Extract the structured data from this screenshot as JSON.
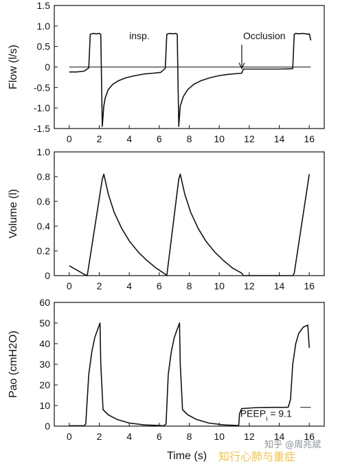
{
  "chart_data": [
    {
      "type": "line",
      "ylabel": "Flow (l/s)",
      "xlim": [
        -1,
        17
      ],
      "ylim": [
        -1.5,
        1.5
      ],
      "xticks": [
        "0",
        "2",
        "4",
        "6",
        "8",
        "10",
        "12",
        "14",
        "16"
      ],
      "yticks": [
        "1.5",
        "1.0",
        "0.5",
        "0",
        "-0.5",
        "-1.0",
        "-1.5"
      ],
      "grid": false,
      "zero_line": true,
      "annotations": [
        {
          "text": "insp.",
          "x": 4.0,
          "y": 0.68
        },
        {
          "text": "Occlusion",
          "x": 13.0,
          "y": 0.68,
          "arrow_to": [
            11.5,
            -0.05
          ]
        }
      ],
      "series": [
        {
          "x": [
            0.0,
            0.5,
            1.0,
            1.3,
            1.4,
            1.6,
            1.8,
            2.0,
            2.1,
            2.2,
            2.3,
            2.4,
            2.6,
            2.9,
            3.3,
            3.8,
            4.4,
            5.0,
            5.6,
            6.1,
            6.4,
            6.5,
            6.7,
            6.9,
            7.1,
            7.2,
            7.3,
            7.4,
            7.6,
            7.9,
            8.3,
            8.8,
            9.4,
            10.0,
            10.6,
            11.2,
            11.5,
            11.6,
            12.0,
            13.0,
            14.0,
            14.9,
            15.0,
            15.1,
            15.3,
            15.6,
            15.9,
            16.0,
            16.1
          ],
          "y": [
            -0.12,
            -0.12,
            -0.1,
            -0.02,
            0.8,
            0.82,
            0.81,
            0.82,
            0.8,
            -1.45,
            -0.95,
            -0.75,
            -0.55,
            -0.42,
            -0.33,
            -0.26,
            -0.21,
            -0.17,
            -0.15,
            -0.13,
            -0.03,
            0.8,
            0.82,
            0.81,
            0.82,
            0.8,
            -1.45,
            -0.95,
            -0.72,
            -0.55,
            -0.42,
            -0.33,
            -0.26,
            -0.21,
            -0.18,
            -0.16,
            -0.15,
            -0.05,
            -0.05,
            -0.05,
            -0.05,
            -0.04,
            0.8,
            0.82,
            0.81,
            0.82,
            0.8,
            0.81,
            0.65
          ]
        }
      ]
    },
    {
      "type": "line",
      "ylabel": "Volume (l)",
      "xlim": [
        -1,
        17
      ],
      "ylim": [
        0,
        1.0
      ],
      "xticks": [
        "0",
        "2",
        "4",
        "6",
        "8",
        "10",
        "12",
        "14",
        "16"
      ],
      "yticks": [
        "1.0",
        "0.8",
        "0.6",
        "0.4",
        "0.2",
        "0"
      ],
      "grid": false,
      "series": [
        {
          "x": [
            0.0,
            1.0,
            1.2,
            2.2,
            2.3,
            2.6,
            3.0,
            3.5,
            4.0,
            4.6,
            5.2,
            5.8,
            6.3,
            6.5,
            7.3,
            7.4,
            7.7,
            8.1,
            8.6,
            9.1,
            9.7,
            10.3,
            10.9,
            11.5,
            11.6,
            13.0,
            14.0,
            14.9,
            15.0,
            16.0
          ],
          "y": [
            0.08,
            0.01,
            0.0,
            0.78,
            0.82,
            0.66,
            0.51,
            0.38,
            0.28,
            0.19,
            0.12,
            0.06,
            0.02,
            0.0,
            0.78,
            0.82,
            0.66,
            0.51,
            0.38,
            0.28,
            0.19,
            0.12,
            0.06,
            0.02,
            0.0,
            0.0,
            0.0,
            0.0,
            0.02,
            0.82
          ]
        }
      ]
    },
    {
      "type": "line",
      "ylabel": "Pao (cmH2O)",
      "xlabel": "Time (s)",
      "xlim": [
        -1,
        17
      ],
      "ylim": [
        0,
        60
      ],
      "xticks": [
        "0",
        "2",
        "4",
        "6",
        "8",
        "10",
        "12",
        "14",
        "16"
      ],
      "yticks": [
        "60",
        "50",
        "40",
        "30",
        "20",
        "10",
        "0"
      ],
      "grid": false,
      "annotations": [
        {
          "text": "PEEP",
          "sub": "i",
          "text_after": " = 9.1",
          "x": 11.4,
          "y": 4.5
        }
      ],
      "series": [
        {
          "x": [
            0.0,
            0.4,
            1.0,
            1.1,
            1.3,
            1.5,
            1.7,
            1.9,
            2.05,
            2.1,
            2.25,
            2.6,
            3.2,
            4.0,
            5.0,
            6.0,
            6.3,
            6.45,
            6.6,
            6.8,
            7.0,
            7.2,
            7.35,
            7.4,
            7.55,
            7.9,
            8.5,
            9.3,
            10.3,
            11.2,
            11.3,
            11.35,
            11.5,
            12.5,
            13.5,
            14.4,
            14.6,
            14.75,
            14.9,
            15.1,
            15.3,
            15.6,
            15.9,
            16.0
          ],
          "y": [
            0.2,
            0.2,
            0.2,
            1.0,
            25,
            36,
            43,
            47,
            50,
            30,
            8,
            5.5,
            3.2,
            1.5,
            0.6,
            0.3,
            0.2,
            1.0,
            25,
            36,
            43,
            47,
            50,
            30,
            8,
            5.5,
            3.2,
            1.5,
            0.6,
            0.3,
            0.5,
            6,
            8.5,
            9.0,
            9.1,
            9.1,
            9.2,
            13,
            30,
            40,
            45,
            48,
            49,
            38
          ]
        }
      ]
    }
  ],
  "watermark": {
    "handle": "知乎 @周兆斌",
    "caption": "知行心肺与重症"
  }
}
